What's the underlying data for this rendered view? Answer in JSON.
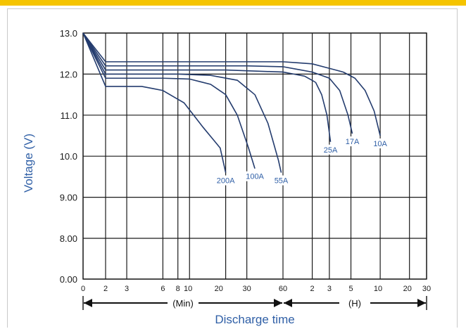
{
  "chart_data": {
    "type": "line",
    "title": "",
    "ylabel": "Voltage (V)",
    "xlabel": "Discharge time",
    "ylim": [
      0,
      13
    ],
    "y_ticks": [
      {
        "value": 0,
        "label": "0.00"
      },
      {
        "value": 8,
        "label": "8.00"
      },
      {
        "value": 9,
        "label": "9.00"
      },
      {
        "value": 10,
        "label": "10.0"
      },
      {
        "value": 11,
        "label": "11.0"
      },
      {
        "value": 12,
        "label": "12.0"
      },
      {
        "value": 13,
        "label": "13.0"
      }
    ],
    "x_ticks": [
      {
        "label": "0",
        "minutes": 0
      },
      {
        "label": "2",
        "minutes": 2
      },
      {
        "label": "3",
        "minutes": 3
      },
      {
        "label": "6",
        "minutes": 6
      },
      {
        "label": "8",
        "minutes": 8
      },
      {
        "label": "10",
        "minutes": 10
      },
      {
        "label": "20",
        "minutes": 20
      },
      {
        "label": "30",
        "minutes": 30
      },
      {
        "label": "60",
        "minutes": 60
      },
      {
        "label": "2",
        "minutes": 120
      },
      {
        "label": "3",
        "minutes": 180
      },
      {
        "label": "5",
        "minutes": 300
      },
      {
        "label": "10",
        "minutes": 600
      },
      {
        "label": "20",
        "minutes": 1200
      },
      {
        "label": "30",
        "minutes": 1800
      }
    ],
    "range_labels": {
      "minutes": "(Min)",
      "hours": "(H)"
    },
    "series": [
      {
        "name": "200A",
        "points": [
          [
            0,
            13.0
          ],
          [
            2,
            11.7
          ],
          [
            4,
            11.7
          ],
          [
            6,
            11.6
          ],
          [
            9,
            11.3
          ],
          [
            13,
            10.7
          ],
          [
            18,
            10.2
          ],
          [
            20,
            9.6
          ]
        ]
      },
      {
        "name": "100A",
        "points": [
          [
            0,
            13.0
          ],
          [
            2,
            11.9
          ],
          [
            6,
            11.9
          ],
          [
            10,
            11.88
          ],
          [
            15,
            11.75
          ],
          [
            20,
            11.5
          ],
          [
            25,
            11.0
          ],
          [
            31,
            10.2
          ],
          [
            35,
            9.7
          ]
        ]
      },
      {
        "name": "55A",
        "points": [
          [
            0,
            13.0
          ],
          [
            2,
            12.0
          ],
          [
            8,
            12.0
          ],
          [
            15,
            11.97
          ],
          [
            25,
            11.85
          ],
          [
            35,
            11.5
          ],
          [
            45,
            10.8
          ],
          [
            55,
            9.9
          ],
          [
            58,
            9.6
          ]
        ]
      },
      {
        "name": "25A",
        "points": [
          [
            0,
            13.0
          ],
          [
            2,
            12.1
          ],
          [
            20,
            12.1
          ],
          [
            60,
            12.05
          ],
          [
            100,
            11.95
          ],
          [
            130,
            11.8
          ],
          [
            150,
            11.5
          ],
          [
            170,
            11.0
          ],
          [
            185,
            10.35
          ]
        ]
      },
      {
        "name": "17A",
        "points": [
          [
            0,
            13.0
          ],
          [
            2,
            12.2
          ],
          [
            30,
            12.2
          ],
          [
            60,
            12.18
          ],
          [
            120,
            12.05
          ],
          [
            180,
            11.9
          ],
          [
            230,
            11.6
          ],
          [
            280,
            11.0
          ],
          [
            310,
            10.55
          ]
        ]
      },
      {
        "name": "10A",
        "points": [
          [
            0,
            13.0
          ],
          [
            2,
            12.3
          ],
          [
            60,
            12.3
          ],
          [
            120,
            12.25
          ],
          [
            250,
            12.05
          ],
          [
            330,
            11.9
          ],
          [
            420,
            11.6
          ],
          [
            520,
            11.1
          ],
          [
            600,
            10.5
          ]
        ]
      }
    ],
    "grid": true,
    "colors": {
      "line": "#243c6e",
      "grid": "#1a1a1a",
      "axis_text": "#1a1a1a",
      "label_text": "#2f5fa6",
      "accent": "#f5c400"
    }
  }
}
